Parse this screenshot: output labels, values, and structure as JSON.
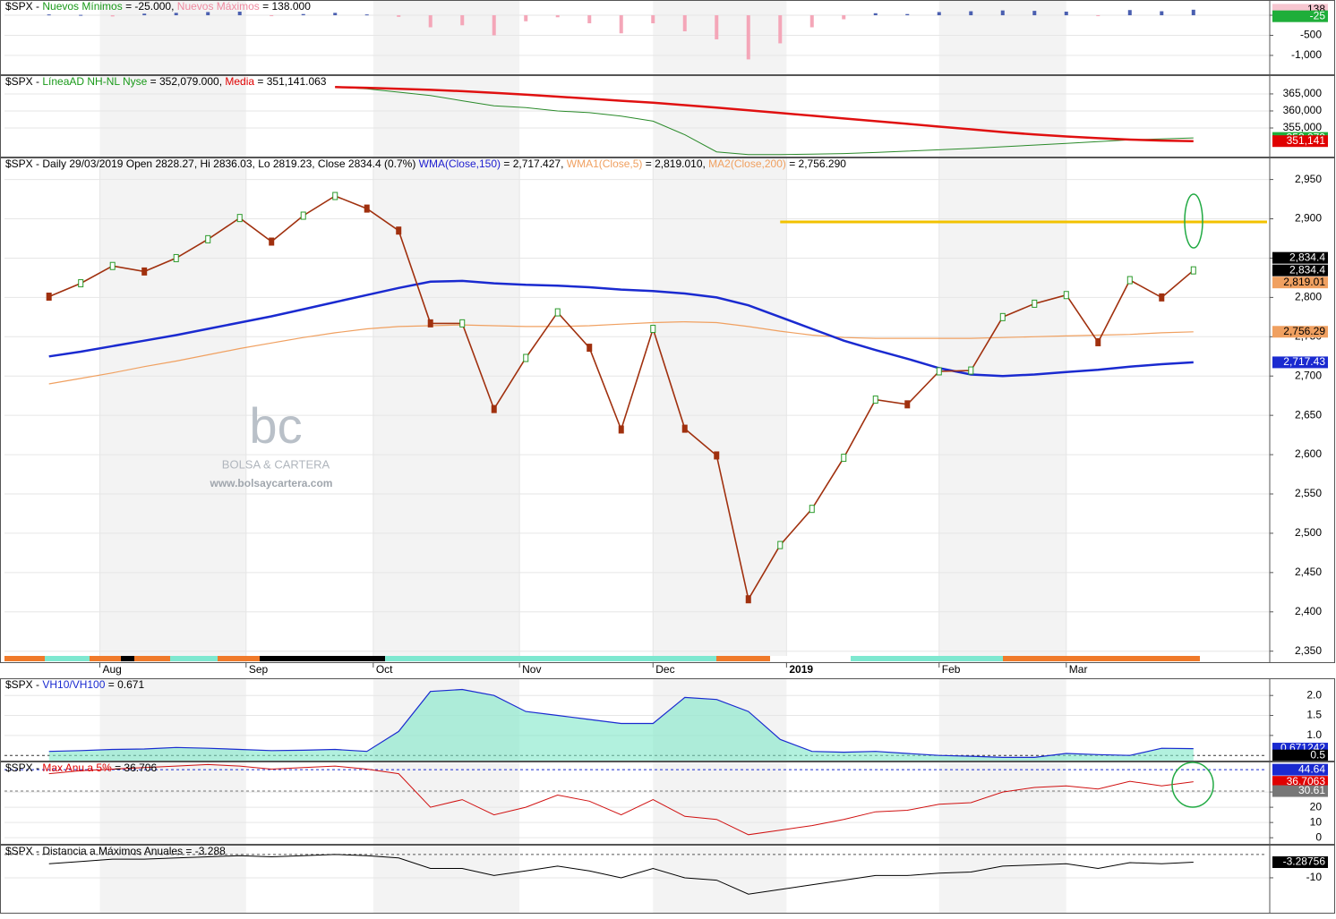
{
  "chart_data": [
    {
      "type": "bar",
      "title_parts": [
        {
          "text": "$SPX - ",
          "color": "#000"
        },
        {
          "text": "Nuevos Mínimos",
          "color": "#1a9a1a"
        },
        {
          "text": " = -25.000, ",
          "color": "#000"
        },
        {
          "text": "Nuevos Máximos",
          "color": "#f08aa0"
        },
        {
          "text": " = 138.000",
          "color": "#000"
        }
      ],
      "x": [
        6,
        11,
        16,
        21,
        26,
        31,
        36,
        41,
        46,
        51,
        56,
        61,
        66,
        71,
        76,
        81,
        86,
        91,
        96,
        101,
        106,
        111,
        116,
        121,
        126,
        131,
        136,
        141,
        146,
        151,
        156,
        161,
        166,
        171,
        176,
        181,
        186
      ],
      "values": [
        20,
        10,
        -30,
        40,
        60,
        80,
        90,
        -10,
        30,
        60,
        20,
        -40,
        -300,
        -250,
        -500,
        -150,
        -50,
        -200,
        -450,
        -200,
        -400,
        -600,
        -1100,
        -700,
        -300,
        -100,
        50,
        30,
        80,
        100,
        120,
        110,
        90,
        -20,
        130,
        100,
        138
      ],
      "colors": {
        "positive": "#4a5fb0",
        "negative": "#f4a6b8"
      },
      "xlim": [
        -1,
        198
      ],
      "ylim": [
        -1470,
        380
      ],
      "yticks": [
        0,
        -500,
        {
          "value": -1000,
          "label": "-1,000"
        }
      ],
      "last_labels": [
        {
          "value": 138,
          "label": "138",
          "color": "#f7c6d0",
          "text_color": "#000"
        },
        {
          "value": -25,
          "label": "-25",
          "color": "#1fae3a",
          "text_color": "#fff"
        }
      ]
    },
    {
      "type": "line",
      "title_parts": [
        {
          "text": "$SPX - ",
          "color": "#000"
        },
        {
          "text": "LíneaAD NH-NL Nyse",
          "color": "#1a9a1a"
        },
        {
          "text": " = 352,079.000, ",
          "color": "#000"
        },
        {
          "text": "Media",
          "color": "#e00000"
        },
        {
          "text": " = 351,141.063",
          "color": "#000"
        }
      ],
      "x": [
        6,
        11,
        16,
        21,
        26,
        31,
        36,
        41,
        46,
        51,
        56,
        61,
        66,
        71,
        76,
        81,
        86,
        91,
        96,
        101,
        106,
        111,
        116,
        121,
        126,
        131,
        136,
        141,
        146,
        151,
        156,
        161,
        166,
        171,
        176,
        181,
        186
      ],
      "series": [
        {
          "name": "LíneaAD NH-NL Nyse",
          "color": "#2a8a2a",
          "width": 1,
          "values": [
            null,
            null,
            null,
            null,
            null,
            null,
            null,
            null,
            null,
            367000,
            366500,
            365500,
            364500,
            363000,
            361500,
            361000,
            360000,
            359500,
            358500,
            357000,
            353000,
            348000,
            347200,
            347200,
            347300,
            347500,
            347800,
            348200,
            348600,
            349000,
            349500,
            350000,
            350500,
            351000,
            351500,
            351800,
            352079
          ]
        },
        {
          "name": "Media",
          "color": "#e01010",
          "width": 2.5,
          "values": [
            null,
            null,
            null,
            null,
            null,
            null,
            null,
            null,
            null,
            367000,
            366800,
            366500,
            366200,
            365800,
            365300,
            364800,
            364200,
            363600,
            363000,
            362400,
            361700,
            361000,
            360200,
            359400,
            358600,
            357800,
            357000,
            356200,
            355400,
            354600,
            353800,
            353100,
            352500,
            352000,
            351600,
            351300,
            351141
          ]
        }
      ],
      "xlim": [
        -1,
        198
      ],
      "ylim": [
        346600,
        370500
      ],
      "yticks": [
        {
          "value": 365000,
          "label": "365,000"
        },
        {
          "value": 360000,
          "label": "360,000"
        },
        {
          "value": 355000,
          "label": "355,000"
        }
      ],
      "last_labels": [
        {
          "value": 352079,
          "label": "352,079",
          "color": "#1fae3a",
          "text_color": "#fff"
        },
        {
          "value": 351141,
          "label": "351,141",
          "color": "#e00000",
          "text_color": "#fff"
        }
      ]
    },
    {
      "type": "line",
      "title_parts": [
        {
          "text": "$SPX - Daily 29/03/2019 Open 2828.27, Hi 2836.03, Lo 2819.23, Close 2834.4 (0.7%) ",
          "color": "#000"
        },
        {
          "text": "WMA(Close,150)",
          "color": "#2020d0"
        },
        {
          "text": " = 2,717.427, ",
          "color": "#000"
        },
        {
          "text": "WMA1(Close,5)",
          "color": "#f0a060"
        },
        {
          "text": " = 2,819.010, ",
          "color": "#000"
        },
        {
          "text": "MA2(Close,200)",
          "color": "#f0a060"
        },
        {
          "text": " = 2,756.290",
          "color": "#000"
        }
      ],
      "x": [
        6,
        11,
        16,
        21,
        26,
        31,
        36,
        41,
        46,
        51,
        56,
        61,
        66,
        71,
        76,
        81,
        86,
        91,
        96,
        101,
        106,
        111,
        116,
        121,
        126,
        131,
        136,
        141,
        146,
        151,
        156,
        161,
        166,
        171,
        176,
        181,
        186
      ],
      "series": [
        {
          "name": "MA2(Close,200)",
          "color": "#f0a060",
          "width": 1.2,
          "values": [
            2690,
            2697,
            2704,
            2712,
            2719,
            2727,
            2735,
            2742,
            2749,
            2755,
            2760,
            2763,
            2764,
            2765,
            2764,
            2763,
            2763,
            2764,
            2766,
            2768,
            2769,
            2768,
            2763,
            2757,
            2752,
            2749,
            2748,
            2748,
            2748,
            2748,
            2749,
            2750,
            2751,
            2752,
            2753,
            2755,
            2756.29
          ]
        },
        {
          "name": "WMA(Close,150)",
          "color": "#1a2ad0",
          "width": 2.5,
          "values": [
            2725,
            2731,
            2738,
            2745,
            2752,
            2760,
            2768,
            2776,
            2785,
            2794,
            2803,
            2812,
            2820,
            2821,
            2818,
            2816,
            2815,
            2813,
            2810,
            2808,
            2805,
            2800,
            2790,
            2775,
            2760,
            2745,
            2733,
            2722,
            2710,
            2702,
            2700,
            2702,
            2705,
            2708,
            2712,
            2715,
            2717.43
          ]
        },
        {
          "name": "Close",
          "color": "#a0300e",
          "width": 1.6,
          "markers": true,
          "values": [
            2801,
            2818,
            2840,
            2833,
            2850,
            2874,
            2901,
            2871,
            2904,
            2929,
            2913,
            2885,
            2767,
            2767,
            2658,
            2723,
            2781,
            2736,
            2632,
            2760,
            2633,
            2599,
            2416,
            2485,
            2531,
            2596,
            2670,
            2664,
            2706,
            2707,
            2775,
            2792,
            2803,
            2743,
            2822,
            2800,
            2834.4
          ]
        }
      ],
      "reference_lines": [
        {
          "value": 2896,
          "from_x": 121,
          "color": "#f2c200"
        }
      ],
      "xlim": [
        -1,
        198
      ],
      "ylim": [
        2336,
        2978
      ],
      "yticks": [
        {
          "value": 2350,
          "label": "2,350"
        },
        {
          "value": 2400,
          "label": "2,400"
        },
        {
          "value": 2450,
          "label": "2,450"
        },
        {
          "value": 2500,
          "label": "2,500"
        },
        {
          "value": 2550,
          "label": "2,550"
        },
        {
          "value": 2600,
          "label": "2,600"
        },
        {
          "value": 2650,
          "label": "2,650"
        },
        {
          "value": 2700,
          "label": "2,700"
        },
        {
          "value": 2750,
          "label": "2,750"
        },
        {
          "value": 2800,
          "label": "2,800"
        },
        {
          "value": 2850,
          "label": "2,850"
        },
        {
          "value": 2900,
          "label": "2,900"
        },
        {
          "value": 2950,
          "label": "2,950"
        }
      ],
      "xticks": [
        {
          "value": 14,
          "label": "Aug"
        },
        {
          "value": 37,
          "label": "Sep"
        },
        {
          "value": 57,
          "label": "Oct"
        },
        {
          "value": 80,
          "label": "Nov"
        },
        {
          "value": 101,
          "label": "Dec"
        },
        {
          "value": 122,
          "label": "2019"
        },
        {
          "value": 146,
          "label": "Feb"
        },
        {
          "value": 166,
          "label": "Mar"
        }
      ],
      "last_labels": [
        {
          "value": 2834.4,
          "label": "2,834.4",
          "color": "#000",
          "text_color": "#fff",
          "offset": -14
        },
        {
          "value": 2834.4,
          "label": "2,834.4",
          "color": "#000",
          "text_color": "#fff"
        },
        {
          "value": 2819.01,
          "label": "2,819.01",
          "color": "#f0a060",
          "text_color": "#000"
        },
        {
          "value": 2756.29,
          "label": "2,756.29",
          "color": "#f0a060",
          "text_color": "#000"
        },
        {
          "value": 2717.43,
          "label": "2,717.43",
          "color": "#1a2ad0",
          "text_color": "#fff"
        }
      ],
      "watermark": {
        "logo": "bc",
        "name": "BOLSA & CARTERA",
        "url": "www.bolsaycartera.com"
      }
    },
    {
      "type": "area",
      "title_parts": [
        {
          "text": "$SPX - ",
          "color": "#000"
        },
        {
          "text": "VH10/VH100",
          "color": "#1a2ad0"
        },
        {
          "text": " = 0.671",
          "color": "#000"
        }
      ],
      "x": [
        6,
        11,
        16,
        21,
        26,
        31,
        36,
        41,
        46,
        51,
        56,
        61,
        66,
        71,
        76,
        81,
        86,
        91,
        96,
        101,
        106,
        111,
        116,
        121,
        126,
        131,
        136,
        141,
        146,
        151,
        156,
        161,
        166,
        171,
        176,
        181,
        186
      ],
      "series": [
        {
          "name": "VH10/VH100",
          "color": "#1a2ad0",
          "fill": "#7ee8c8",
          "width": 1.2,
          "values": [
            0.6,
            0.62,
            0.65,
            0.66,
            0.7,
            0.68,
            0.65,
            0.62,
            0.63,
            0.65,
            0.6,
            1.1,
            2.1,
            2.15,
            2.0,
            1.6,
            1.5,
            1.4,
            1.3,
            1.3,
            1.95,
            1.9,
            1.6,
            0.9,
            0.6,
            0.58,
            0.6,
            0.55,
            0.5,
            0.48,
            0.45,
            0.45,
            0.55,
            0.52,
            0.5,
            0.68,
            0.671
          ]
        }
      ],
      "reference_lines": [
        {
          "value": 0.5,
          "color": "#333",
          "dashed": true
        }
      ],
      "xlim": [
        -1,
        198
      ],
      "ylim": [
        0.37,
        2.43
      ],
      "yticks": [
        {
          "value": 2,
          "label": "2.0"
        },
        1.5,
        {
          "value": 1,
          "label": "1.0"
        }
      ],
      "last_labels": [
        {
          "value": 0.671242,
          "label": "0.671242",
          "color": "#1a2ad0",
          "text_color": "#fff"
        },
        {
          "value": 0.5,
          "label": "0.5",
          "color": "#000",
          "text_color": "#fff"
        }
      ]
    },
    {
      "type": "line",
      "title_parts": [
        {
          "text": "$SPX - ",
          "color": "#000"
        },
        {
          "text": "Max Anu a 5%",
          "color": "#e00000"
        },
        {
          "text": " = 36.706",
          "color": "#000"
        }
      ],
      "x": [
        6,
        11,
        16,
        21,
        26,
        31,
        36,
        41,
        46,
        51,
        56,
        61,
        66,
        71,
        76,
        81,
        86,
        91,
        96,
        101,
        106,
        111,
        116,
        121,
        126,
        131,
        136,
        141,
        146,
        151,
        156,
        161,
        166,
        171,
        176,
        181,
        186
      ],
      "series": [
        {
          "name": "Max Anu a 5%",
          "color": "#d01010",
          "width": 1,
          "values": [
            42,
            44,
            45,
            46,
            47,
            48,
            47,
            45,
            46,
            47,
            45,
            42,
            20,
            25,
            15,
            20,
            28,
            24,
            15,
            25,
            14,
            12,
            2,
            5,
            8,
            12,
            17,
            18,
            22,
            23,
            30,
            33,
            34,
            32,
            37,
            34,
            36.706
          ]
        }
      ],
      "reference_lines": [
        {
          "value": 44.64,
          "color": "#1a2ad0",
          "dashed": true
        },
        {
          "value": 30.61,
          "color": "#777",
          "dashed": true
        }
      ],
      "xlim": [
        -1,
        198
      ],
      "ylim": [
        -4,
        50
      ],
      "yticks": [
        30,
        20,
        10,
        0
      ],
      "last_labels": [
        {
          "value": 44.64,
          "label": "44.64",
          "color": "#1a2ad0",
          "text_color": "#fff"
        },
        {
          "value": 36.7063,
          "label": "36.7063",
          "color": "#e00000",
          "text_color": "#fff"
        },
        {
          "value": 30.61,
          "label": "30.61",
          "color": "#777",
          "text_color": "#fff"
        }
      ]
    },
    {
      "type": "line",
      "title_parts": [
        {
          "text": "$SPX - Distancia a Máximos Anuales = -3.288",
          "color": "#000"
        }
      ],
      "x": [
        6,
        11,
        16,
        21,
        26,
        31,
        36,
        41,
        46,
        51,
        56,
        61,
        66,
        71,
        76,
        81,
        86,
        91,
        96,
        101,
        106,
        111,
        116,
        121,
        126,
        131,
        136,
        141,
        146,
        151,
        156,
        161,
        166,
        171,
        176,
        181,
        186
      ],
      "series": [
        {
          "name": "Distancia a Máximos Anuales",
          "color": "#000",
          "width": 1,
          "values": [
            -4,
            -3,
            -2,
            -2,
            -1.5,
            -1,
            -0.5,
            -1,
            -0.5,
            0,
            -0.5,
            -1.5,
            -6,
            -6,
            -9,
            -7,
            -5,
            -7,
            -10,
            -6,
            -10,
            -11,
            -17,
            -15,
            -13,
            -11,
            -9,
            -9,
            -8,
            -7.5,
            -5,
            -4.5,
            -4,
            -6,
            -3.5,
            -4,
            -3.288
          ]
        }
      ],
      "reference_lines": [
        {
          "value": 0,
          "color": "#555",
          "dashed": true
        }
      ],
      "xlim": [
        -1,
        198
      ],
      "ylim": [
        -25,
        4.2
      ],
      "yticks": [
        -10
      ],
      "last_labels": [
        {
          "value": -3.28756,
          "label": "-3.28756",
          "color": "#000",
          "text_color": "#fff"
        }
      ]
    }
  ]
}
